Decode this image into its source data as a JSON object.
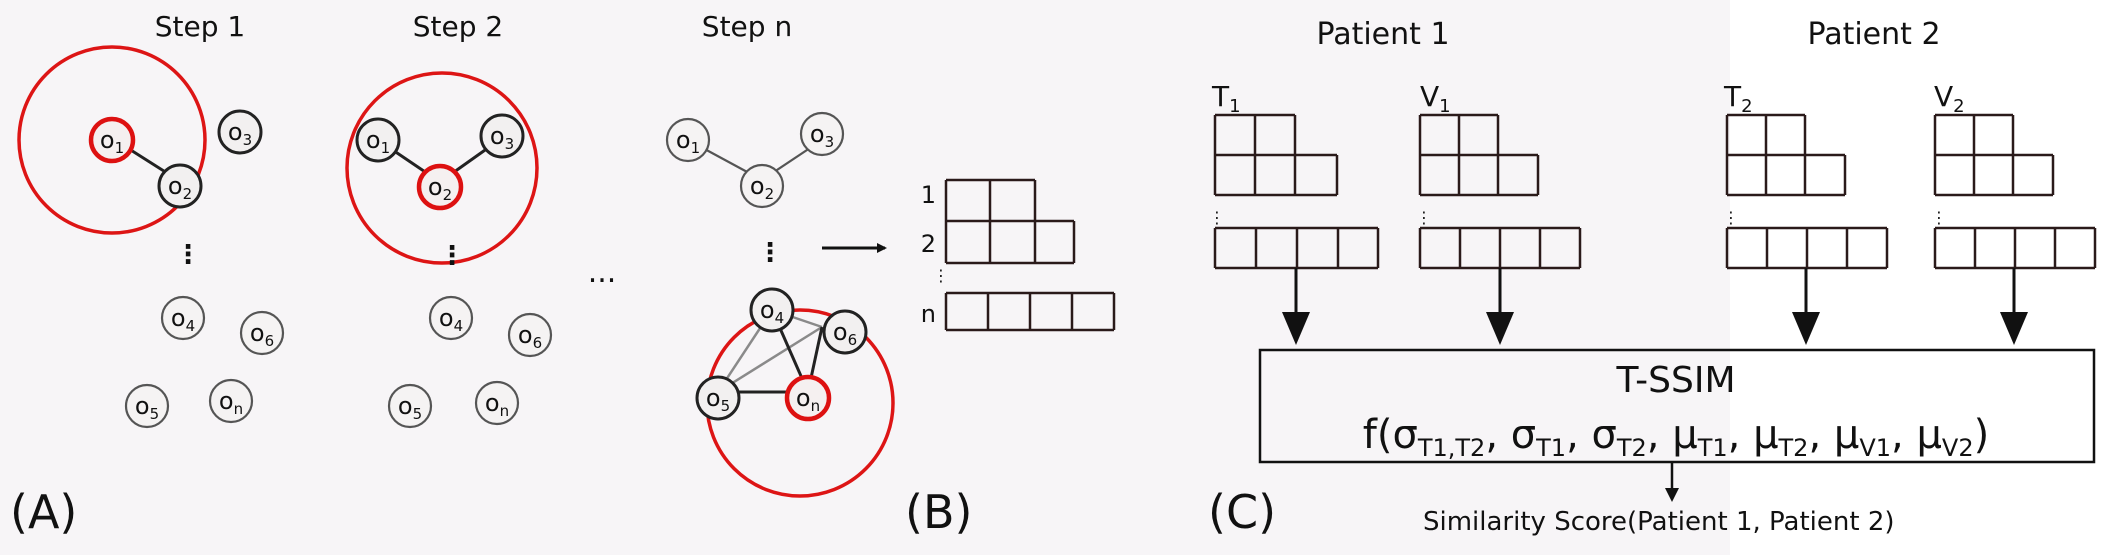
{
  "panel_a": {
    "label": "(A)",
    "steps": [
      "Step 1",
      "Step 2",
      "Step n"
    ],
    "ellipsis": "...",
    "vdots": "⋮"
  },
  "nodes": {
    "o1": {
      "main": "o",
      "sub": "1"
    },
    "o2": {
      "main": "o",
      "sub": "2"
    },
    "o3": {
      "main": "o",
      "sub": "3"
    },
    "o4": {
      "main": "o",
      "sub": "4"
    },
    "o5": {
      "main": "o",
      "sub": "5"
    },
    "o6": {
      "main": "o",
      "sub": "6"
    },
    "on": {
      "main": "o",
      "sub": "n"
    }
  },
  "panel_b": {
    "label": "(B)",
    "row_labels": [
      "1",
      "2",
      "n"
    ],
    "vdots": "⋮"
  },
  "panel_c": {
    "label": "(C)",
    "patients": [
      "Patient 1",
      "Patient 2"
    ],
    "matrices": [
      {
        "main": "T",
        "sub": "1"
      },
      {
        "main": "V",
        "sub": "1"
      },
      {
        "main": "T",
        "sub": "2"
      },
      {
        "main": "V",
        "sub": "2"
      }
    ],
    "vdots": "⋮",
    "box_title": "T-SSIM",
    "formula": {
      "prefix": "f(",
      "terms": [
        {
          "main": "σ",
          "sub": "T1,T2"
        },
        {
          "main": "σ",
          "sub": "T1"
        },
        {
          "main": "σ",
          "sub": "T2"
        },
        {
          "main": "μ",
          "sub": "T1"
        },
        {
          "main": "μ",
          "sub": "T2"
        },
        {
          "main": "μ",
          "sub": "V1"
        },
        {
          "main": "μ",
          "sub": "V2"
        }
      ],
      "separator": ", ",
      "suffix": ")"
    },
    "result": "Similarity Score(Patient 1, Patient 2)"
  },
  "colors": {
    "highlight": "#dd1515",
    "ink": "#111111",
    "left_background": "#f7f5f7"
  }
}
